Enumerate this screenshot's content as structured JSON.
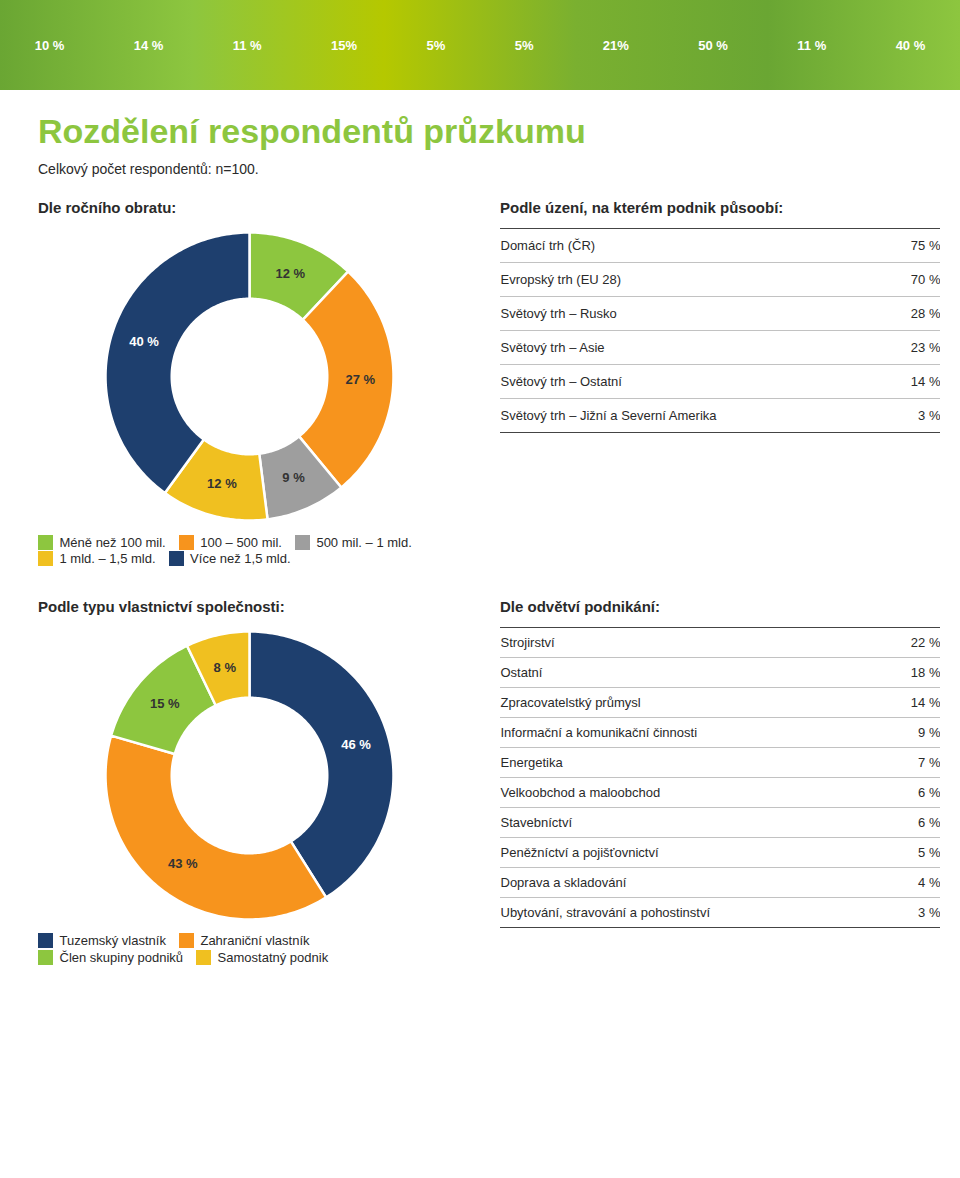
{
  "title": "Rozdělení respondentů průzkumu",
  "subtitle": "Celkový počet respondentů: n=100.",
  "annotations": [
    "10 %",
    "14 %",
    "11 %",
    "15%",
    "5%",
    "5%",
    "21%",
    "50 %",
    "11 %",
    "40 %"
  ],
  "chart_data": [
    {
      "type": "pie",
      "title": "Dle ročního obratu:",
      "categories": [
        "Méně než 100 mil.",
        "100 – 500 mil.",
        "500 mil. – 1 mld.",
        "1 mld. – 1,5 mld.",
        "Více než 1,5 mld."
      ],
      "values": [
        12,
        27,
        9,
        12,
        40
      ],
      "value_labels": [
        "12 %",
        "27 %",
        "9 %",
        "12 %",
        "40 %"
      ],
      "colors": [
        "#8dc63f",
        "#f7941d",
        "#9e9e9e",
        "#f0c020",
        "#1e3f6e"
      ],
      "data_labels": true,
      "legend": "bottom"
    },
    {
      "type": "table",
      "title": "Podle úzení, na kterém podnik půsoobí:",
      "categories": [
        "Domácí trh (ČR)",
        "Evropský trh (EU 28)",
        "Světový trh – Rusko",
        "Světový trh – Asie",
        "Světový trh – Ostatní",
        "Světový trh – Jižní a Severní Amerika"
      ],
      "values": [
        75,
        70,
        28,
        23,
        14,
        3
      ],
      "value_labels": [
        "75 %",
        "70 %",
        "28 %",
        "23 %",
        "14 %",
        "3 %"
      ],
      "data_labels": true
    },
    {
      "type": "pie",
      "title": "Podle typu vlastnictví společnosti:",
      "categories": [
        "Tuzemský vlastník",
        "Zahraniční vlastník",
        "Člen skupiny podniků",
        "Samostatný podnik"
      ],
      "values": [
        46,
        43,
        15,
        8
      ],
      "value_labels": [
        "46 %",
        "43 %",
        "15 %",
        "8 %"
      ],
      "colors": [
        "#1e3f6e",
        "#f7941d",
        "#8dc63f",
        "#f0c020"
      ],
      "data_labels": true,
      "legend": "bottom"
    },
    {
      "type": "table",
      "title": "Dle odvětví podnikání:",
      "categories": [
        "Strojirství",
        "Ostatní",
        "Zpracovatelstký průmysl",
        "Informační a komunikační činnosti",
        "Energetika",
        "Velkoobchod a maloobchod",
        "Stavebníctví",
        "Peněžníctví a pojišťovnictví",
        "Doprava a skladování",
        "Ubytování, stravování a pohostinství"
      ],
      "values": [
        22,
        18,
        14,
        9,
        7,
        6,
        6,
        5,
        4,
        3
      ],
      "value_labels": [
        "22 %",
        "18 %",
        "14 %",
        "9 %",
        "7 %",
        "6 %",
        "6 %",
        "5 %",
        "4 %",
        "3 %"
      ],
      "data_labels": true
    }
  ]
}
